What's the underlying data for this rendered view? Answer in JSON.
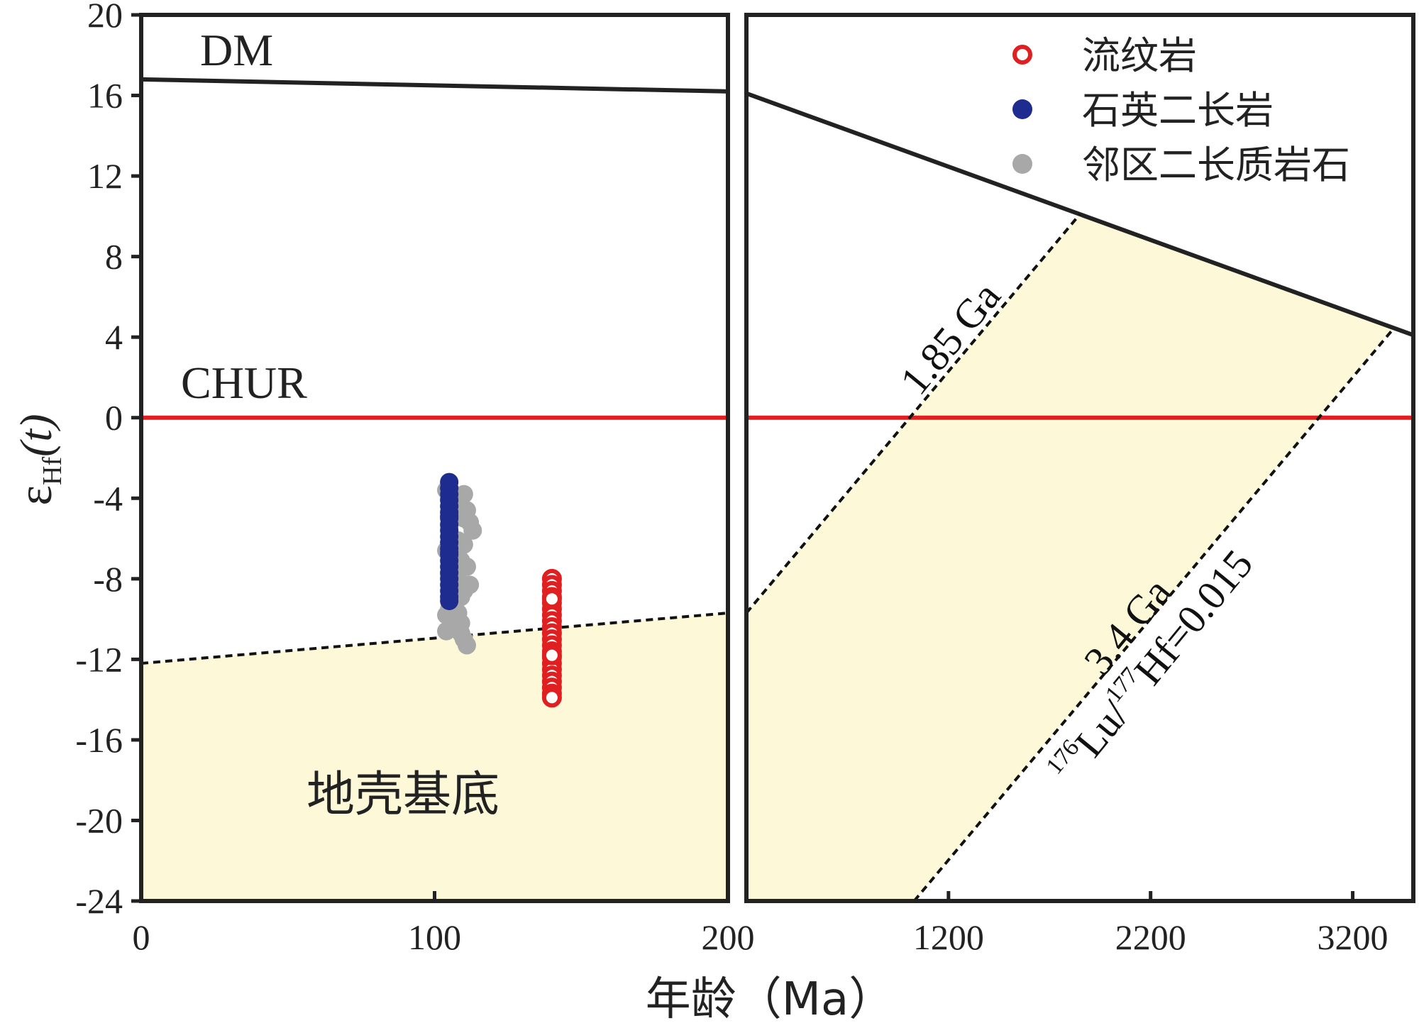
{
  "chart_data": [
    {
      "type": "scatter",
      "panel": "left",
      "xlim": [
        0,
        200
      ],
      "ylim": [
        -24,
        20
      ],
      "x_ticks": [
        "0",
        "100",
        "200"
      ],
      "y_ticks": [
        "20",
        "16",
        "12",
        "8",
        "4",
        "0",
        "-4",
        "-8",
        "-12",
        "-16",
        "-20",
        "-24"
      ],
      "ylabel": "ε",
      "ylabel_sub": "Hf",
      "ylabel_suffix": "(t)",
      "reference_lines": [
        {
          "name": "DM",
          "x": [
            0,
            200
          ],
          "y": [
            16.8,
            16.2
          ],
          "style": "solid",
          "color": "#222222"
        },
        {
          "name": "CHUR",
          "x": [
            0,
            200
          ],
          "y": [
            0,
            0
          ],
          "style": "solid",
          "color": "#e02020"
        },
        {
          "name": "",
          "x": [
            0,
            200
          ],
          "y": [
            -12.2,
            -9.7
          ],
          "style": "dashed",
          "color": "#111111"
        }
      ],
      "shaded_region_label": "地壳基底",
      "shade_color": "#fdf8d8",
      "series": [
        {
          "name": "邻区二长质岩石",
          "marker": "filled-circle",
          "color": "#a8a8a8",
          "x": [
            104,
            105,
            106,
            107,
            108,
            109,
            110,
            111,
            112,
            113,
            105,
            106,
            108,
            110,
            104,
            107,
            109,
            111,
            106,
            108,
            112,
            110,
            109,
            107,
            105,
            104,
            106,
            108,
            109,
            110,
            111,
            104,
            105,
            107,
            106,
            108,
            109,
            110,
            107,
            105
          ],
          "y": [
            -3.6,
            -4,
            -3.9,
            -4.5,
            -3.9,
            -4.3,
            -3.8,
            -4.6,
            -5.2,
            -5.6,
            -5.4,
            -6,
            -6.1,
            -6.3,
            -6.6,
            -6.9,
            -7.1,
            -7.4,
            -7.7,
            -8,
            -8.3,
            -8.6,
            -8.9,
            -9.2,
            -9.5,
            -9.8,
            -10.1,
            -10.4,
            -10.7,
            -11,
            -11.3,
            -10.6,
            -7.8,
            -8.5,
            -9,
            -9.7,
            -10.2,
            -5,
            -4.8,
            -6.8
          ]
        },
        {
          "name": "石英二长岩",
          "marker": "filled-circle",
          "color": "#1e2b8f",
          "x": [
            105,
            105,
            105,
            105,
            105,
            105,
            105,
            105,
            105,
            105,
            105,
            105,
            105,
            105,
            105,
            105,
            105,
            105,
            105,
            105,
            105,
            105,
            105
          ],
          "y": [
            -3.2,
            -3.5,
            -3.8,
            -4.1,
            -4.4,
            -4.7,
            -5,
            -5.3,
            -5.6,
            -5.9,
            -6.2,
            -6.5,
            -6.8,
            -7.1,
            -7.4,
            -7.7,
            -8,
            -8.3,
            -8.6,
            -8.9,
            -9.1,
            -4.9,
            -6.7
          ]
        },
        {
          "name": "流纹岩",
          "marker": "open-circle",
          "color": "#e02020",
          "x": [
            140,
            140,
            140,
            140,
            140,
            140,
            140,
            140,
            140,
            140,
            140,
            140,
            140,
            140,
            140,
            140,
            140,
            140,
            140,
            140,
            140,
            140,
            140
          ],
          "y": [
            -8,
            -8.3,
            -8.6,
            -8.9,
            -9.2,
            -9.5,
            -9.8,
            -10.1,
            -10.4,
            -10.7,
            -11,
            -11.3,
            -11.6,
            -11.9,
            -12.2,
            -12.5,
            -12.8,
            -13.1,
            -13.4,
            -13.7,
            -13.9,
            -9,
            -11.8
          ]
        }
      ]
    },
    {
      "type": "line",
      "panel": "right",
      "xlim": [
        200,
        3500
      ],
      "ylim": [
        -24,
        20
      ],
      "x_ticks": [
        "1200",
        "2200",
        "3200"
      ],
      "reference_lines": [
        {
          "name": "DM",
          "x": [
            200,
            3500
          ],
          "y": [
            16.1,
            4.1
          ],
          "style": "solid",
          "color": "#222222"
        },
        {
          "name": "CHUR",
          "x": [
            200,
            3500
          ],
          "y": [
            0,
            0
          ],
          "style": "solid",
          "color": "#e02020"
        },
        {
          "name": "1.85 Ga",
          "x": [
            200,
            1850
          ],
          "y": [
            -9.7,
            10.1
          ],
          "style": "dashed",
          "color": "#111111"
        },
        {
          "name": "3.4 Ga",
          "x": [
            1030,
            3400
          ],
          "y": [
            -24,
            4.4
          ],
          "style": "dashed",
          "color": "#111111"
        }
      ],
      "shade_color": "#fdf8d8",
      "annotations": {
        "line_185": "1.85 Ga",
        "line_34": "3.4 Ga",
        "ratio_sup1": "176",
        "ratio_lu": "Lu/",
        "ratio_sup2": "177",
        "ratio_hf": "Hf=0.015"
      }
    }
  ],
  "labels": {
    "dm": "DM",
    "chur": "CHUR",
    "crust": "地壳基底",
    "xlabel_left_tick_200": "200",
    "xlabel": "年龄（Ma）"
  },
  "legend": {
    "placement": "top-right",
    "items": [
      {
        "label": "流纹岩",
        "marker": "open-circle",
        "color": "#e02020"
      },
      {
        "label": "石英二长岩",
        "marker": "filled-circle",
        "color": "#1e2b8f"
      },
      {
        "label": "邻区二长质岩石",
        "marker": "filled-circle",
        "color": "#a8a8a8"
      }
    ]
  }
}
